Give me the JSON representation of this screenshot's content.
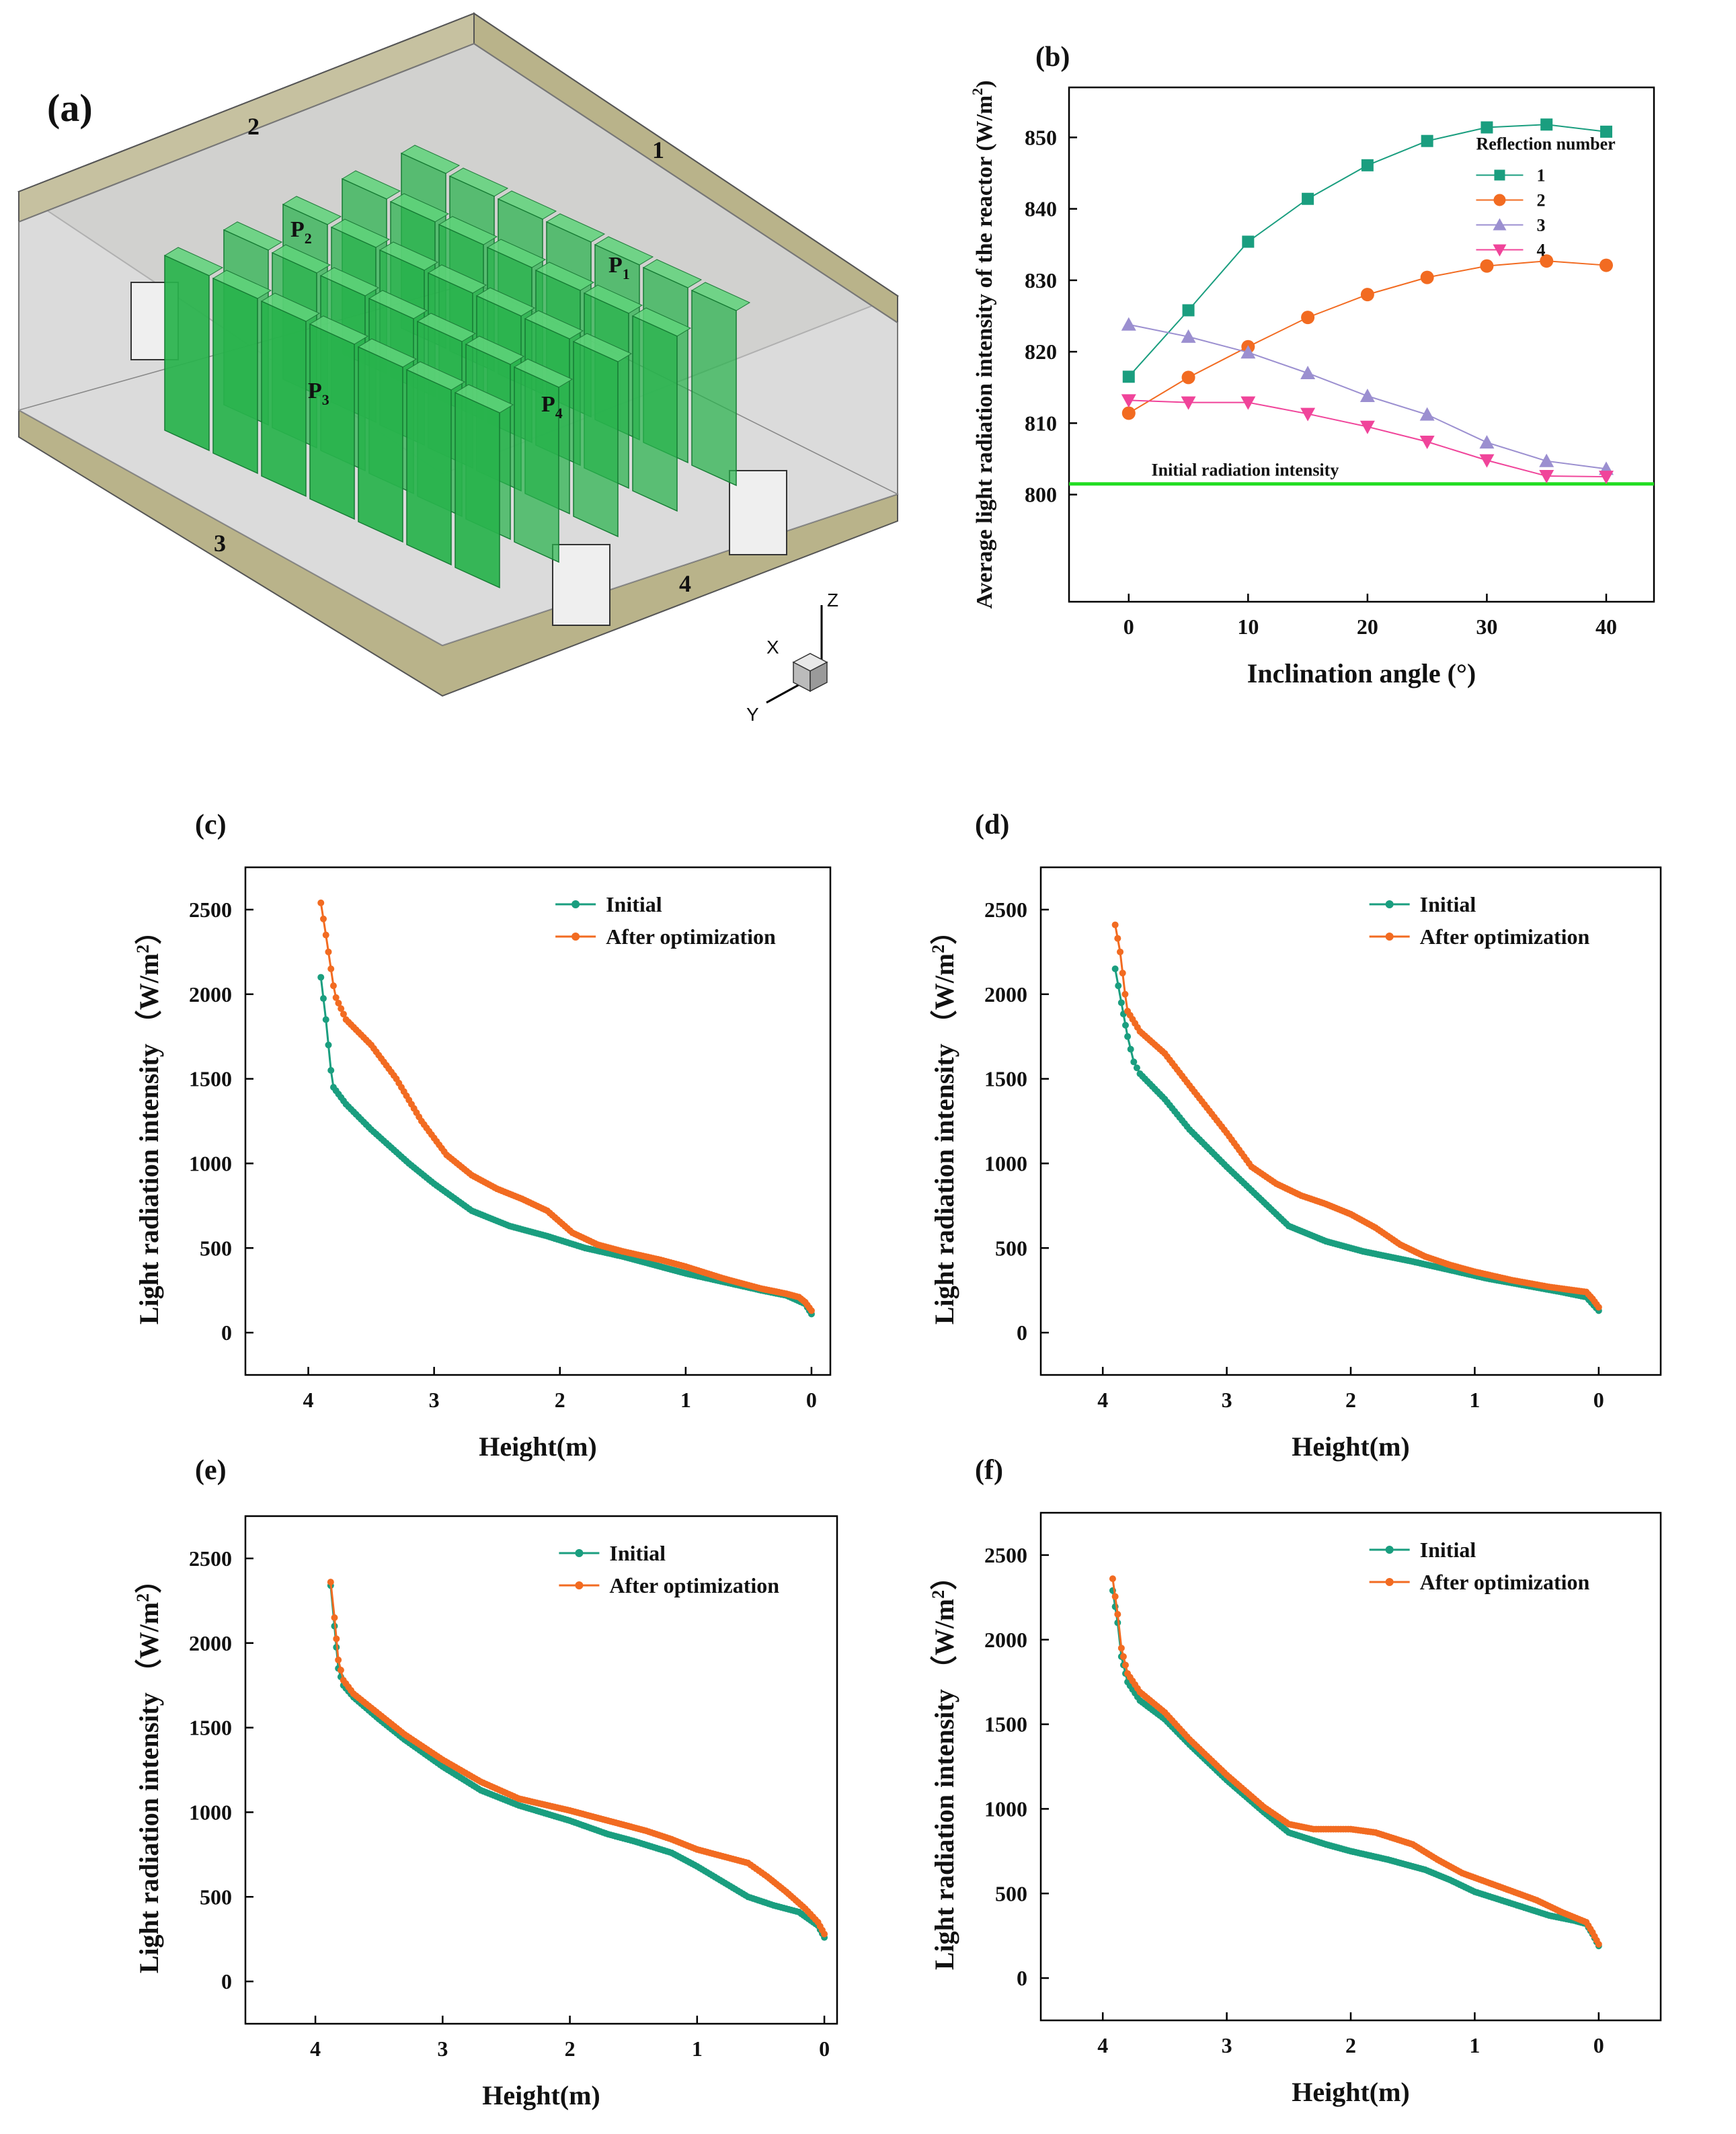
{
  "colors": {
    "teal": "#1a9e7f",
    "orange": "#f26b21",
    "purple": "#9b8fd0",
    "magenta": "#f0449a",
    "green_line": "#22dd22",
    "panel_green": "#28b34c",
    "wall_tan": "#b9b38a"
  },
  "panel_a": {
    "label": "(a)",
    "edge_labels": [
      "1",
      "2",
      "3",
      "4"
    ],
    "plate_labels": [
      {
        "main": "P",
        "sub": "1"
      },
      {
        "main": "P",
        "sub": "2"
      },
      {
        "main": "P",
        "sub": "3"
      },
      {
        "main": "P",
        "sub": "4"
      }
    ],
    "axes": {
      "x": "X",
      "y": "Y",
      "z": "Z"
    }
  },
  "chart_data": [
    {
      "id": "b",
      "panel_label": "(b)",
      "type": "line",
      "xlabel": "Inclination angle (°)",
      "ylabel_main": "Average light radiation intensity of the reactor (W/m",
      "ylabel_sup": "2",
      "ylabel_end": ")",
      "xlim": [
        -5,
        44
      ],
      "ylim": [
        785,
        857
      ],
      "xticks": [
        0,
        10,
        20,
        30,
        40
      ],
      "yticks": [
        800,
        810,
        820,
        830,
        840,
        850
      ],
      "legend_title": "Reflection number",
      "annotation": "Initial radiation intensity",
      "reference_value": 801.5,
      "x": [
        0,
        5,
        10,
        15,
        20,
        25,
        30,
        35,
        40
      ],
      "series": [
        {
          "name": "1",
          "marker": "square",
          "color": "#1a9e7f",
          "values": [
            816.5,
            825.8,
            835.4,
            841.4,
            846.1,
            849.5,
            851.4,
            851.8,
            850.8
          ]
        },
        {
          "name": "2",
          "marker": "circle",
          "color": "#f26b21",
          "values": [
            811.4,
            816.4,
            820.7,
            824.8,
            828.0,
            830.4,
            832.0,
            832.7,
            832.1
          ]
        },
        {
          "name": "3",
          "marker": "triangle-up",
          "color": "#9b8fd0",
          "values": [
            823.8,
            822.1,
            819.9,
            817.0,
            813.8,
            811.2,
            807.3,
            804.7,
            803.6
          ]
        },
        {
          "name": "4",
          "marker": "triangle-down",
          "color": "#f0449a",
          "values": [
            813.2,
            812.9,
            812.9,
            811.3,
            809.5,
            807.4,
            804.8,
            802.6,
            802.5
          ]
        }
      ]
    },
    {
      "id": "c",
      "panel_label": "(c)",
      "type": "line",
      "xlabel": "Height(m)",
      "ylabel_main": "Light radiation intensity （W/m",
      "ylabel_sup": "2",
      "ylabel_end": "）",
      "xlim": [
        4.5,
        -0.15
      ],
      "ylim": [
        -250,
        2750
      ],
      "xticks": [
        4,
        3,
        2,
        1,
        0
      ],
      "yticks": [
        0,
        500,
        1000,
        1500,
        2000,
        2500
      ],
      "series": [
        {
          "name": "Initial",
          "color": "#1a9e7f",
          "points": [
            [
              3.9,
              2100
            ],
            [
              3.86,
              1850
            ],
            [
              3.82,
              1550
            ],
            [
              3.8,
              1450
            ],
            [
              3.7,
              1350
            ],
            [
              3.5,
              1200
            ],
            [
              3.2,
              1000
            ],
            [
              3.0,
              880
            ],
            [
              2.7,
              720
            ],
            [
              2.4,
              630
            ],
            [
              2.1,
              570
            ],
            [
              1.8,
              500
            ],
            [
              1.5,
              450
            ],
            [
              1.2,
              390
            ],
            [
              1.0,
              350
            ],
            [
              0.7,
              300
            ],
            [
              0.4,
              250
            ],
            [
              0.2,
              220
            ],
            [
              0.05,
              170
            ],
            [
              0.0,
              110
            ]
          ]
        },
        {
          "name": "After optimization",
          "color": "#f26b21",
          "points": [
            [
              3.9,
              2540
            ],
            [
              3.86,
              2350
            ],
            [
              3.8,
              2050
            ],
            [
              3.78,
              1980
            ],
            [
              3.7,
              1850
            ],
            [
              3.5,
              1700
            ],
            [
              3.3,
              1500
            ],
            [
              3.1,
              1250
            ],
            [
              2.9,
              1050
            ],
            [
              2.7,
              930
            ],
            [
              2.5,
              850
            ],
            [
              2.3,
              790
            ],
            [
              2.1,
              720
            ],
            [
              1.9,
              590
            ],
            [
              1.7,
              520
            ],
            [
              1.5,
              480
            ],
            [
              1.2,
              430
            ],
            [
              1.0,
              390
            ],
            [
              0.7,
              320
            ],
            [
              0.4,
              260
            ],
            [
              0.2,
              230
            ],
            [
              0.1,
              210
            ],
            [
              0.05,
              180
            ],
            [
              0.0,
              130
            ]
          ]
        }
      ]
    },
    {
      "id": "d",
      "panel_label": "(d)",
      "type": "line",
      "xlabel": "Height(m)",
      "ylabel_main": "Light radiation intensity （W/m",
      "ylabel_sup": "2",
      "ylabel_end": "）",
      "xlim": [
        4.5,
        -0.5
      ],
      "ylim": [
        -250,
        2750
      ],
      "xticks": [
        4,
        3,
        2,
        1,
        0
      ],
      "yticks": [
        0,
        500,
        1000,
        1500,
        2000,
        2500
      ],
      "series": [
        {
          "name": "Initial",
          "color": "#1a9e7f",
          "points": [
            [
              3.9,
              2150
            ],
            [
              3.85,
              1950
            ],
            [
              3.8,
              1750
            ],
            [
              3.75,
              1600
            ],
            [
              3.7,
              1530
            ],
            [
              3.5,
              1380
            ],
            [
              3.3,
              1200
            ],
            [
              3.0,
              980
            ],
            [
              2.7,
              770
            ],
            [
              2.5,
              630
            ],
            [
              2.2,
              540
            ],
            [
              1.9,
              480
            ],
            [
              1.5,
              420
            ],
            [
              1.2,
              370
            ],
            [
              0.9,
              320
            ],
            [
              0.6,
              280
            ],
            [
              0.3,
              240
            ],
            [
              0.1,
              210
            ],
            [
              0.0,
              130
            ]
          ]
        },
        {
          "name": "After optimization",
          "color": "#f26b21",
          "points": [
            [
              3.9,
              2410
            ],
            [
              3.86,
              2250
            ],
            [
              3.82,
              2000
            ],
            [
              3.8,
              1900
            ],
            [
              3.7,
              1780
            ],
            [
              3.5,
              1650
            ],
            [
              3.3,
              1460
            ],
            [
              3.0,
              1180
            ],
            [
              2.8,
              980
            ],
            [
              2.6,
              880
            ],
            [
              2.4,
              810
            ],
            [
              2.2,
              760
            ],
            [
              2.0,
              700
            ],
            [
              1.8,
              620
            ],
            [
              1.6,
              520
            ],
            [
              1.4,
              450
            ],
            [
              1.2,
              400
            ],
            [
              1.0,
              360
            ],
            [
              0.7,
              310
            ],
            [
              0.4,
              270
            ],
            [
              0.1,
              240
            ],
            [
              0.05,
              200
            ],
            [
              0.0,
              150
            ]
          ]
        }
      ]
    },
    {
      "id": "e",
      "panel_label": "(e)",
      "type": "line",
      "xlabel": "Height(m)",
      "ylabel_main": "Light radiation intensity （W/m",
      "ylabel_sup": "2",
      "ylabel_end": "）",
      "xlim": [
        4.55,
        -0.1
      ],
      "ylim": [
        -250,
        2750
      ],
      "xticks": [
        4,
        3,
        2,
        1,
        0
      ],
      "yticks": [
        0,
        500,
        1000,
        1500,
        2000,
        2500
      ],
      "series": [
        {
          "name": "Initial",
          "color": "#1a9e7f",
          "points": [
            [
              3.88,
              2340
            ],
            [
              3.85,
              2100
            ],
            [
              3.82,
              1850
            ],
            [
              3.78,
              1750
            ],
            [
              3.7,
              1680
            ],
            [
              3.5,
              1550
            ],
            [
              3.3,
              1430
            ],
            [
              3.0,
              1270
            ],
            [
              2.7,
              1130
            ],
            [
              2.4,
              1040
            ],
            [
              2.0,
              950
            ],
            [
              1.7,
              870
            ],
            [
              1.5,
              830
            ],
            [
              1.2,
              760
            ],
            [
              1.0,
              680
            ],
            [
              0.8,
              590
            ],
            [
              0.6,
              500
            ],
            [
              0.4,
              450
            ],
            [
              0.2,
              410
            ],
            [
              0.05,
              330
            ],
            [
              0.0,
              260
            ]
          ]
        },
        {
          "name": "After optimization",
          "color": "#f26b21",
          "points": [
            [
              3.88,
              2360
            ],
            [
              3.85,
              2150
            ],
            [
              3.82,
              1900
            ],
            [
              3.78,
              1780
            ],
            [
              3.7,
              1700
            ],
            [
              3.5,
              1580
            ],
            [
              3.3,
              1460
            ],
            [
              3.0,
              1310
            ],
            [
              2.7,
              1180
            ],
            [
              2.4,
              1080
            ],
            [
              2.0,
              1010
            ],
            [
              1.7,
              950
            ],
            [
              1.4,
              890
            ],
            [
              1.2,
              840
            ],
            [
              1.0,
              780
            ],
            [
              0.8,
              740
            ],
            [
              0.6,
              700
            ],
            [
              0.45,
              620
            ],
            [
              0.3,
              530
            ],
            [
              0.15,
              430
            ],
            [
              0.05,
              350
            ],
            [
              0.0,
              280
            ]
          ]
        }
      ]
    },
    {
      "id": "f",
      "panel_label": "(f)",
      "type": "line",
      "xlabel": "Height(m)",
      "ylabel_main": "Light radiation intensity （W/m",
      "ylabel_sup": "2",
      "ylabel_end": "）",
      "xlim": [
        4.5,
        -0.5
      ],
      "ylim": [
        -250,
        2750
      ],
      "xticks": [
        4,
        3,
        2,
        1,
        0
      ],
      "yticks": [
        0,
        500,
        1000,
        1500,
        2000,
        2500
      ],
      "series": [
        {
          "name": "Initial",
          "color": "#1a9e7f",
          "points": [
            [
              3.92,
              2290
            ],
            [
              3.88,
              2100
            ],
            [
              3.85,
              1900
            ],
            [
              3.8,
              1750
            ],
            [
              3.7,
              1640
            ],
            [
              3.5,
              1530
            ],
            [
              3.3,
              1380
            ],
            [
              3.0,
              1170
            ],
            [
              2.7,
              980
            ],
            [
              2.5,
              860
            ],
            [
              2.2,
              790
            ],
            [
              2.0,
              750
            ],
            [
              1.7,
              700
            ],
            [
              1.4,
              640
            ],
            [
              1.2,
              580
            ],
            [
              1.0,
              510
            ],
            [
              0.7,
              440
            ],
            [
              0.4,
              370
            ],
            [
              0.2,
              340
            ],
            [
              0.1,
              320
            ],
            [
              0.05,
              260
            ],
            [
              0.0,
              190
            ]
          ]
        },
        {
          "name": "After optimization",
          "color": "#f26b21",
          "points": [
            [
              3.92,
              2360
            ],
            [
              3.88,
              2150
            ],
            [
              3.85,
              1950
            ],
            [
              3.8,
              1800
            ],
            [
              3.7,
              1690
            ],
            [
              3.5,
              1570
            ],
            [
              3.3,
              1410
            ],
            [
              3.0,
              1200
            ],
            [
              2.7,
              1010
            ],
            [
              2.5,
              910
            ],
            [
              2.3,
              880
            ],
            [
              2.0,
              880
            ],
            [
              1.8,
              860
            ],
            [
              1.5,
              790
            ],
            [
              1.3,
              700
            ],
            [
              1.1,
              620
            ],
            [
              0.8,
              540
            ],
            [
              0.5,
              460
            ],
            [
              0.3,
              390
            ],
            [
              0.1,
              330
            ],
            [
              0.05,
              270
            ],
            [
              0.0,
              200
            ]
          ]
        }
      ]
    }
  ]
}
